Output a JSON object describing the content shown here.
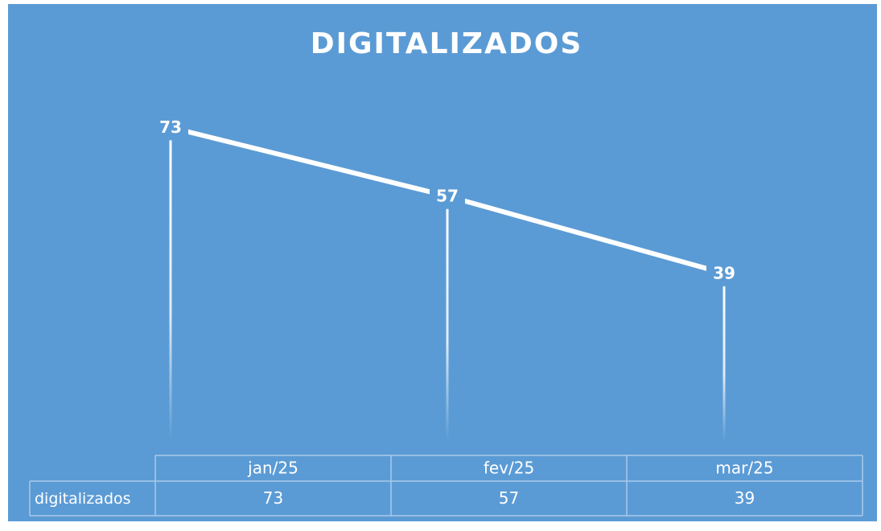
{
  "chart_data": {
    "type": "line",
    "title": "DIGITALIZADOS",
    "categories": [
      "jan/25",
      "fev/25",
      "mar/25"
    ],
    "series": [
      {
        "name": "digitalizados",
        "color": "#ffffff",
        "values": [
          73,
          57,
          39
        ]
      }
    ],
    "ylim": [
      0,
      83
    ]
  }
}
